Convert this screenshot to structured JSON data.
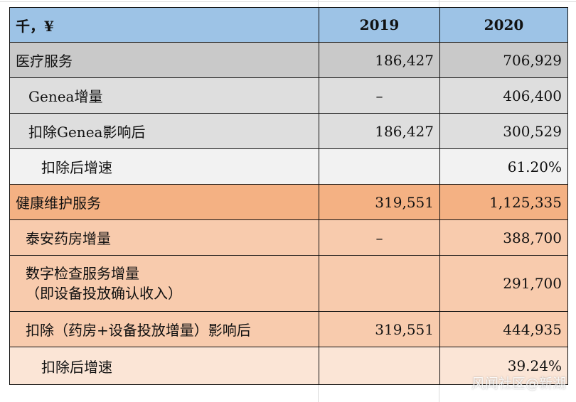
{
  "table": {
    "header": {
      "label": "千，¥",
      "y2019": "2019",
      "y2020": "2020"
    },
    "rows": [
      {
        "label": "医疗服务",
        "v2019": "186,427",
        "v2020": "706,929"
      },
      {
        "label": "Genea增量",
        "v2019": "–",
        "v2020": "406,400"
      },
      {
        "label": "扣除Genea影响后",
        "v2019": "186,427",
        "v2020": "300,529"
      },
      {
        "label": "扣除后增速",
        "v2019": "",
        "v2020": "61.20%"
      },
      {
        "label": "健康维护服务",
        "v2019": "319,551",
        "v2020": "1,125,335"
      },
      {
        "label": "泰安药房增量",
        "v2019": "–",
        "v2020": "388,700"
      },
      {
        "label_line1": "数字检查服务增量",
        "label_line2": "（即设备投放确认收入）",
        "v2019": "",
        "v2020": "291,700"
      },
      {
        "label": "扣除（药房+设备投放增量）影响后",
        "v2019": "319,551",
        "v2020": "444,935"
      },
      {
        "label": "扣除后增速",
        "v2019": "",
        "v2020": "39.24%"
      }
    ]
  },
  "watermark": "风闻社区@新湖"
}
